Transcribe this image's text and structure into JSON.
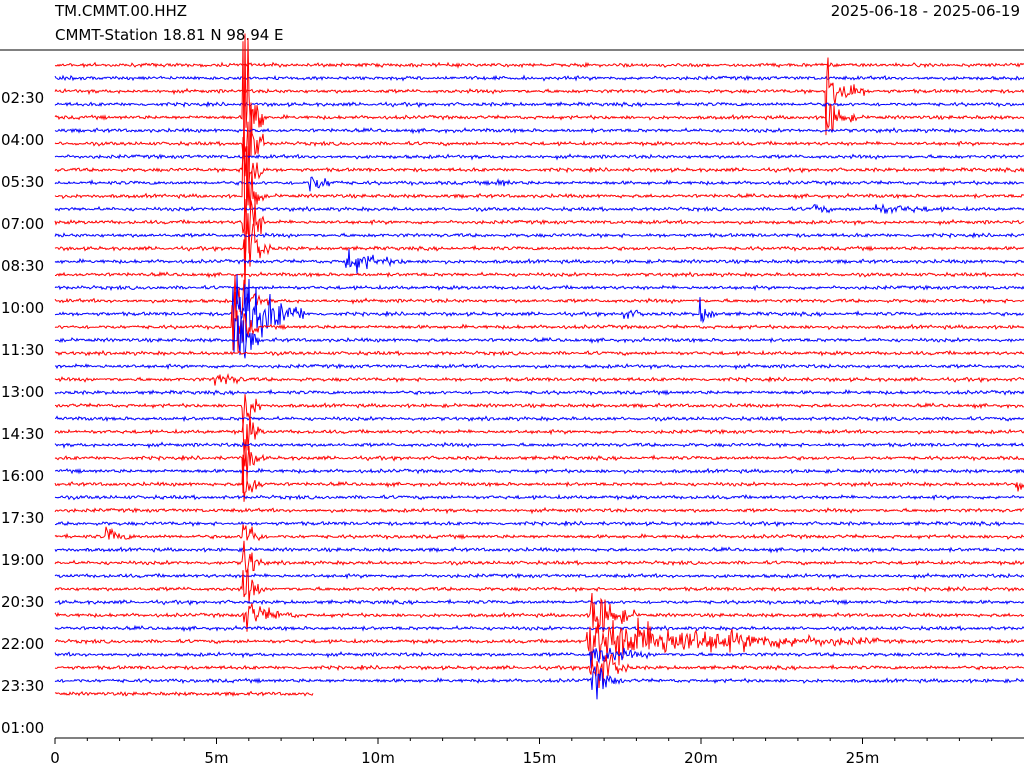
{
  "header": {
    "title": "TM.CMMT.00.HHZ",
    "subtitle": "CMMT-Station  18.81 N 98.94 E",
    "date_range": "2025-06-18 - 2025-06-19"
  },
  "chart_data": {
    "type": "line",
    "title": "TM.CMMT.00.HHZ",
    "subtitle": "CMMT-Station  18.81 N 98.94 E",
    "date_range": "2025-06-18 - 2025-06-19",
    "x_unit": "minutes",
    "xlim": [
      0,
      30
    ],
    "x_ticks": [
      0,
      5,
      10,
      15,
      20,
      25
    ],
    "x_tick_labels": [
      "0",
      "5m",
      "10m",
      "15m",
      "20m",
      "25m"
    ],
    "y_tick_labels": [
      "02:30",
      "04:00",
      "05:30",
      "07:00",
      "08:30",
      "10:00",
      "11:30",
      "13:00",
      "14:30",
      "16:00",
      "17:30",
      "19:00",
      "20:30",
      "22:00",
      "23:30",
      "01:00"
    ],
    "trace_count": 49,
    "trace_minutes": 30,
    "last_trace_minutes": 8,
    "colors": [
      "#ff0000",
      "#0000ff"
    ],
    "events": [
      {
        "trace": 2,
        "minute": 23.9,
        "amp": 36,
        "dur": 1.2
      },
      {
        "trace": 4,
        "minute": 23.9,
        "amp": 22,
        "dur": 1.0
      },
      {
        "trace": 4,
        "minute": 5.85,
        "amp": 120,
        "dur": 0.6
      },
      {
        "trace": 6,
        "minute": 5.85,
        "amp": 90,
        "dur": 0.6
      },
      {
        "trace": 8,
        "minute": 5.85,
        "amp": 90,
        "dur": 0.6
      },
      {
        "trace": 9,
        "minute": 7.9,
        "amp": 12,
        "dur": 1.2
      },
      {
        "trace": 9,
        "minute": 13.7,
        "amp": 6,
        "dur": 1.0
      },
      {
        "trace": 11,
        "minute": 23.5,
        "amp": 7,
        "dur": 1.0
      },
      {
        "trace": 11,
        "minute": 25.3,
        "amp": 6,
        "dur": 4.5
      },
      {
        "trace": 10,
        "minute": 5.85,
        "amp": 80,
        "dur": 0.6
      },
      {
        "trace": 12,
        "minute": 5.85,
        "amp": 80,
        "dur": 0.6
      },
      {
        "trace": 14,
        "minute": 5.9,
        "amp": 45,
        "dur": 0.8
      },
      {
        "trace": 15,
        "minute": 9.0,
        "amp": 14,
        "dur": 2.2
      },
      {
        "trace": 18,
        "minute": 5.6,
        "amp": 28,
        "dur": 1.0
      },
      {
        "trace": 19,
        "minute": 5.55,
        "amp": 55,
        "dur": 2.2
      },
      {
        "trace": 19,
        "minute": 17.6,
        "amp": 6,
        "dur": 1.5
      },
      {
        "trace": 19,
        "minute": 20.0,
        "amp": 16,
        "dur": 0.6
      },
      {
        "trace": 20,
        "minute": 5.5,
        "amp": 40,
        "dur": 0.8
      },
      {
        "trace": 21,
        "minute": 5.7,
        "amp": 40,
        "dur": 0.6
      },
      {
        "trace": 24,
        "minute": 5.0,
        "amp": 9,
        "dur": 1.5
      },
      {
        "trace": 26,
        "minute": 5.85,
        "amp": 30,
        "dur": 0.6
      },
      {
        "trace": 28,
        "minute": 5.85,
        "amp": 30,
        "dur": 0.6
      },
      {
        "trace": 30,
        "minute": 5.85,
        "amp": 30,
        "dur": 0.6
      },
      {
        "trace": 32,
        "minute": 5.85,
        "amp": 30,
        "dur": 0.6
      },
      {
        "trace": 32,
        "minute": 29.8,
        "amp": 16,
        "dur": 0.3
      },
      {
        "trace": 36,
        "minute": 1.6,
        "amp": 10,
        "dur": 1.2
      },
      {
        "trace": 36,
        "minute": 5.85,
        "amp": 30,
        "dur": 0.6
      },
      {
        "trace": 38,
        "minute": 5.85,
        "amp": 30,
        "dur": 0.6
      },
      {
        "trace": 40,
        "minute": 5.85,
        "amp": 30,
        "dur": 0.6
      },
      {
        "trace": 42,
        "minute": 5.85,
        "amp": 30,
        "dur": 0.6
      },
      {
        "trace": 42,
        "minute": 5.9,
        "amp": 14,
        "dur": 2.0
      },
      {
        "trace": 42,
        "minute": 16.6,
        "amp": 35,
        "dur": 1.4
      },
      {
        "trace": 44,
        "minute": 16.5,
        "amp": 28,
        "dur": 9.0
      },
      {
        "trace": 45,
        "minute": 16.6,
        "amp": 14,
        "dur": 2.2
      },
      {
        "trace": 46,
        "minute": 16.6,
        "amp": 38,
        "dur": 1.2
      },
      {
        "trace": 47,
        "minute": 16.6,
        "amp": 22,
        "dur": 1.0
      }
    ]
  }
}
